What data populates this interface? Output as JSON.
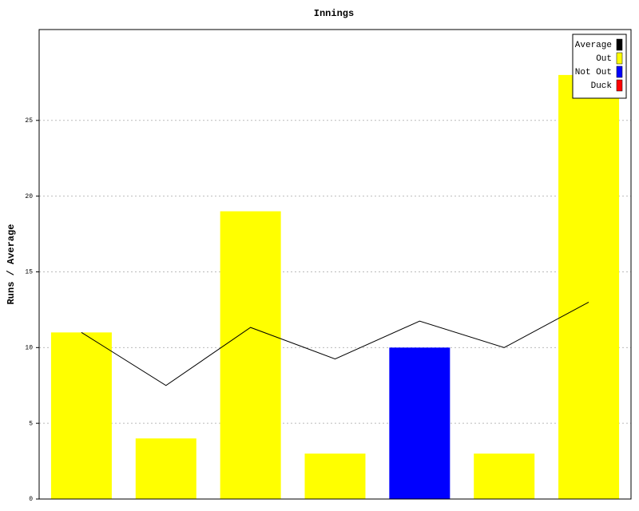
{
  "chart_data": {
    "type": "bar",
    "title": "Innings",
    "y_label": "Runs / Average",
    "categories": [
      null,
      null,
      null,
      null,
      null,
      null,
      null
    ],
    "series": [
      {
        "name": "Average",
        "color": "#000000",
        "type": "line",
        "values": [
          11,
          7.5,
          11.33,
          9.25,
          11.75,
          10,
          13
        ]
      },
      {
        "name": "Out",
        "color": "#ffff00",
        "values": [
          11,
          4,
          19,
          3,
          null,
          3,
          28
        ]
      },
      {
        "name": "Not Out",
        "color": "#0000ff",
        "values": [
          null,
          null,
          null,
          null,
          10,
          null,
          null
        ]
      },
      {
        "name": "Duck",
        "color": "#ff0000",
        "values": [
          null,
          null,
          null,
          null,
          null,
          null,
          null
        ]
      }
    ],
    "ylim": [
      0,
      31
    ],
    "yticks": [
      0,
      5,
      10,
      15,
      20,
      25
    ],
    "grid": true,
    "legend": "top-right"
  }
}
